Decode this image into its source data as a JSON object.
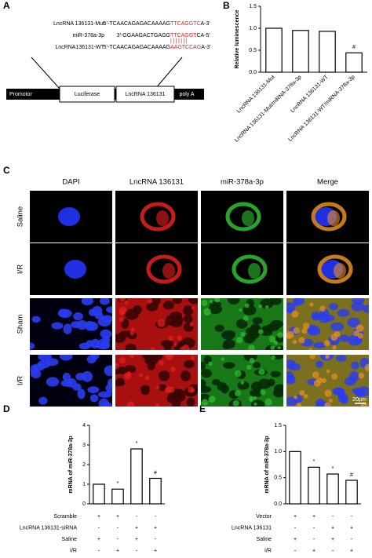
{
  "panel_labels": [
    "A",
    "B",
    "C",
    "D",
    "E"
  ],
  "sequence_diagram": {
    "sequences": [
      {
        "name": "LncRNA 136131-Mut",
        "prefix": "5'-TCAACAGAGACAAAAG",
        "site": "TTCAGGTC",
        "suffix": "A-3'"
      },
      {
        "name": "miR-378a-3p",
        "prefix": "3'-GGAAGACTGAGG",
        "site": "TTCAGGT",
        "suffix": "CA-5'"
      },
      {
        "name": "LncRNA136131-WT",
        "prefix": "5'-TCAACAGAGACAAAAG",
        "site": "AAGTCCAG",
        "suffix": "A-3'"
      }
    ],
    "construct": [
      "Promotor",
      "Luciferase",
      "LncRNA 136131",
      "poly A"
    ]
  },
  "microscopy": {
    "columns": [
      "DAPI",
      "LncRNA 136131",
      "miR-378a-3p",
      "Merge"
    ],
    "rows": [
      "Saline",
      "I/R",
      "Sham",
      "I/R"
    ],
    "scale_bar": "20μm"
  },
  "chart_data": [
    {
      "type": "bar",
      "ylabel": "Relative luminescence",
      "categories": [
        "LncRNA 136131-Mut",
        "LncRNA 136131-Mut/miRNA-378a-3p",
        "LncRNA 136131-WT",
        "LncRNA 136131-WT/miRNA-378a-3p"
      ],
      "values": [
        1.0,
        0.95,
        0.93,
        0.44
      ],
      "annotations": [
        null,
        null,
        null,
        "#"
      ],
      "color": "#ffffff",
      "edgecolor": "#000000",
      "ylim": [
        0,
        1.5
      ],
      "yticks": [
        {
          "value": 0,
          "label": "0.0"
        },
        0.5,
        {
          "value": 1,
          "label": "1.0"
        },
        1.5
      ]
    },
    {
      "type": "bar",
      "ylabel": "mRNA of miR-378a-3p",
      "values": [
        1.0,
        0.75,
        2.8,
        1.3
      ],
      "annotations": [
        null,
        "*",
        "*",
        "#"
      ],
      "color": "#ffffff",
      "edgecolor": "#000000",
      "ylim": [
        0,
        4
      ],
      "yticks": [
        0,
        1,
        2,
        3,
        4
      ],
      "conditions": [
        {
          "label": "Scramble",
          "marks": [
            "+",
            "+",
            "-",
            "-"
          ]
        },
        {
          "label": "LncRNA 136131-siRNA",
          "marks": [
            "-",
            "-",
            "+",
            "+"
          ]
        },
        {
          "label": "Saline",
          "marks": [
            "+",
            "-",
            "+",
            "-"
          ]
        },
        {
          "label": "I/R",
          "marks": [
            "-",
            "+",
            "-",
            "+"
          ]
        }
      ]
    },
    {
      "type": "bar",
      "ylabel": "mRNA of miR-378a-3p",
      "values": [
        1.0,
        0.7,
        0.57,
        0.45
      ],
      "annotations": [
        null,
        "*",
        "*",
        "#"
      ],
      "color": "#ffffff",
      "edgecolor": "#000000",
      "ylim": [
        0,
        1.5
      ],
      "yticks": [
        {
          "value": 0,
          "label": "0.0"
        },
        0.5,
        {
          "value": 1,
          "label": "1.0"
        },
        1.5
      ],
      "conditions": [
        {
          "label": "Vector",
          "marks": [
            "+",
            "+",
            "-",
            "-"
          ]
        },
        {
          "label": "LncRNA 136131",
          "marks": [
            "-",
            "-",
            "+",
            "+"
          ]
        },
        {
          "label": "Saline",
          "marks": [
            "+",
            "-",
            "+",
            "-"
          ]
        },
        {
          "label": "I/R",
          "marks": [
            "-",
            "+",
            "-",
            "+"
          ]
        }
      ]
    }
  ]
}
